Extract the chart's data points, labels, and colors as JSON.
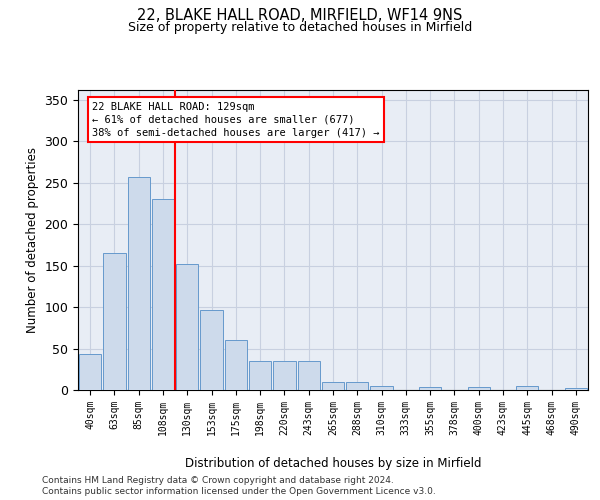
{
  "title": "22, BLAKE HALL ROAD, MIRFIELD, WF14 9NS",
  "subtitle": "Size of property relative to detached houses in Mirfield",
  "xlabel": "Distribution of detached houses by size in Mirfield",
  "ylabel": "Number of detached properties",
  "categories": [
    "40sqm",
    "63sqm",
    "85sqm",
    "108sqm",
    "130sqm",
    "153sqm",
    "175sqm",
    "198sqm",
    "220sqm",
    "243sqm",
    "265sqm",
    "288sqm",
    "310sqm",
    "333sqm",
    "355sqm",
    "378sqm",
    "400sqm",
    "423sqm",
    "445sqm",
    "468sqm",
    "490sqm"
  ],
  "values": [
    44,
    165,
    257,
    231,
    152,
    97,
    60,
    35,
    35,
    35,
    10,
    10,
    5,
    0,
    4,
    0,
    4,
    0,
    5,
    0,
    2
  ],
  "bar_color": "#cddaeb",
  "bar_edge_color": "#6699cc",
  "bar_edge_width": 0.7,
  "grid_color": "#c8d0e0",
  "bg_color": "#e8edf5",
  "red_line_x": 3.5,
  "annotation_line1": "22 BLAKE HALL ROAD: 129sqm",
  "annotation_line2": "← 61% of detached houses are smaller (677)",
  "annotation_line3": "38% of semi-detached houses are larger (417) →",
  "footer_line1": "Contains HM Land Registry data © Crown copyright and database right 2024.",
  "footer_line2": "Contains public sector information licensed under the Open Government Licence v3.0.",
  "ylim": [
    0,
    362
  ],
  "yticks": [
    0,
    50,
    100,
    150,
    200,
    250,
    300,
    350
  ]
}
